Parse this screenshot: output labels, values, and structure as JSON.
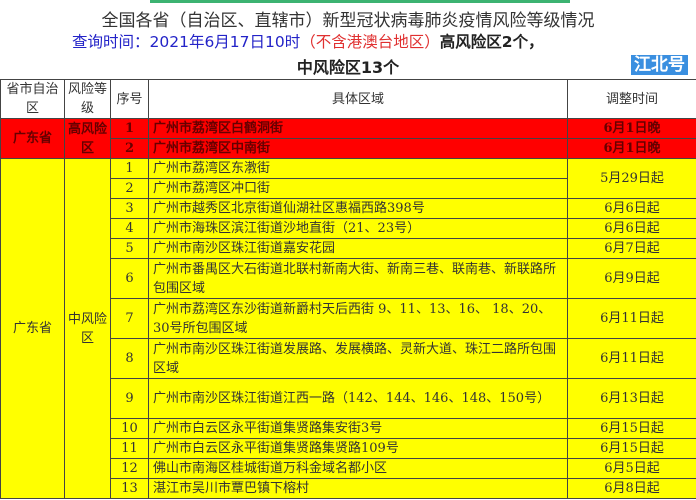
{
  "title": "全国各省（自治区、直辖市）新型冠状病毒肺炎疫情风险等级情况",
  "subtitle": {
    "query_label": "查询时间：2021年6月17日10时",
    "exclude": "（不含港澳台地区）",
    "high_count": "高风险区2个，",
    "mid_count": "中风险区13个"
  },
  "headers": [
    "省市自治区",
    "风险等级",
    "序号",
    "具体区域",
    "调整时间"
  ],
  "high": {
    "province": "广东省",
    "level": "高风险区",
    "rows": [
      {
        "no": "1",
        "area": "广州市荔湾区白鹤洞街",
        "time": "6月1日晚"
      },
      {
        "no": "2",
        "area": "广州市荔湾区中南街",
        "time": "6月1日晚"
      }
    ]
  },
  "mid": {
    "province": "广东省",
    "level": "中风险区",
    "rows": [
      {
        "no": "1",
        "area": "广州市荔湾区东漖街",
        "time": "5月29日起"
      },
      {
        "no": "2",
        "area": "广州市荔湾区冲口街",
        "time": ""
      },
      {
        "no": "3",
        "area": "广州市越秀区北京街道仙湖社区惠福西路398号",
        "time": "6月6日起"
      },
      {
        "no": "4",
        "area": "广州市海珠区滨江街道沙地直街（21、23号）",
        "time": "6月6日起"
      },
      {
        "no": "5",
        "area": "广州市南沙区珠江街道嘉安花园",
        "time": "6月7日起"
      },
      {
        "no": "6",
        "area": "广州市番禺区大石街道北联村新南大街、新南三巷、联南巷、新联路所包围区域",
        "time": "6月9日起"
      },
      {
        "no": "7",
        "area": "广州市荔湾区东沙街道新爵村天后西街 9、11、13、16、 18、20、30号所包围区域",
        "time": "6月11日起"
      },
      {
        "no": "8",
        "area": "广州市南沙区珠江街道发展路、发展横路、灵新大道、珠江二路所包围区域",
        "time": "6月11日起"
      },
      {
        "no": "9",
        "area": "广州市南沙区珠江街道江西一路（142、144、146、148、150号）",
        "time": "6月13日起"
      },
      {
        "no": "10",
        "area": "广州市白云区永平街道集贤路集安街3号",
        "time": "6月15日起"
      },
      {
        "no": "11",
        "area": "广州市白云区永平街道集贤路集贤路109号",
        "time": "6月15日起"
      },
      {
        "no": "12",
        "area": "佛山市南海区桂城街道万科金域名都小区",
        "time": "6月5日起"
      },
      {
        "no": "13",
        "area": "湛江市吴川市覃巴镇下榕村",
        "time": "6月8日起"
      }
    ]
  },
  "watermark": "江北号",
  "colors": {
    "high": "#ff0000",
    "mid": "#ffff00"
  }
}
